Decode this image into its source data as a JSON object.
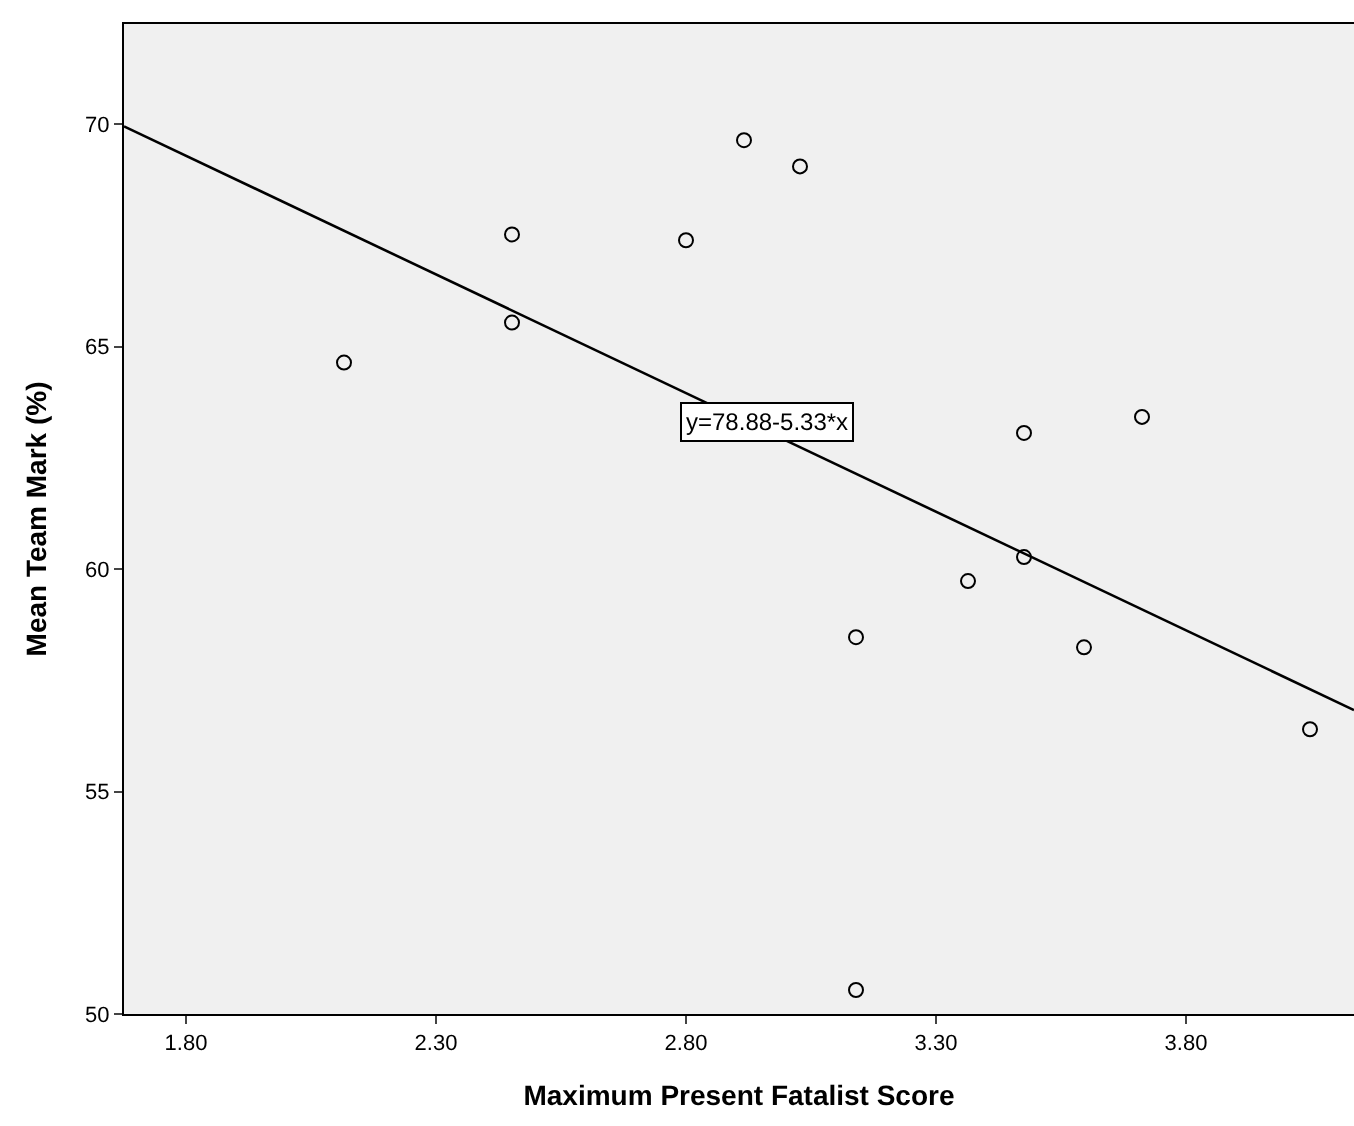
{
  "chart_data": {
    "type": "scatter",
    "xlabel": "Maximum Present Fatalist Score",
    "ylabel": "Mean Team Mark (%)",
    "xlim": [
      1.676,
      4.136
    ],
    "ylim": [
      50,
      72.25
    ],
    "xticks": [
      {
        "value": 1.8,
        "label": "1.80"
      },
      {
        "value": 2.3,
        "label": "2.30"
      },
      {
        "value": 2.8,
        "label": "2.80"
      },
      {
        "value": 3.3,
        "label": "3.30"
      },
      {
        "value": 3.8,
        "label": "3.80"
      }
    ],
    "yticks": [
      50,
      55,
      60,
      65,
      70
    ],
    "grid": false,
    "legend": false,
    "series": [
      {
        "marker": "circle",
        "color": "#000000",
        "x": [
          2.116,
          2.452,
          2.452,
          2.8,
          2.916,
          3.028,
          3.14,
          3.14,
          3.364,
          3.476,
          3.476,
          3.596,
          3.712,
          4.048
        ],
        "values": [
          64.64,
          67.52,
          65.54,
          67.39,
          69.64,
          69.05,
          58.47,
          50.54,
          59.73,
          63.06,
          60.27,
          58.24,
          63.42,
          56.4
        ]
      },
      {
        "type": "line",
        "marker": "none",
        "color": "#000000",
        "x": [
          1.676,
          4.136
        ],
        "values": [
          69.95,
          56.83
        ]
      }
    ],
    "annotations": [
      {
        "text": "y=78.88-5.33*x",
        "x": 2.96,
        "y": 63.3
      }
    ]
  }
}
